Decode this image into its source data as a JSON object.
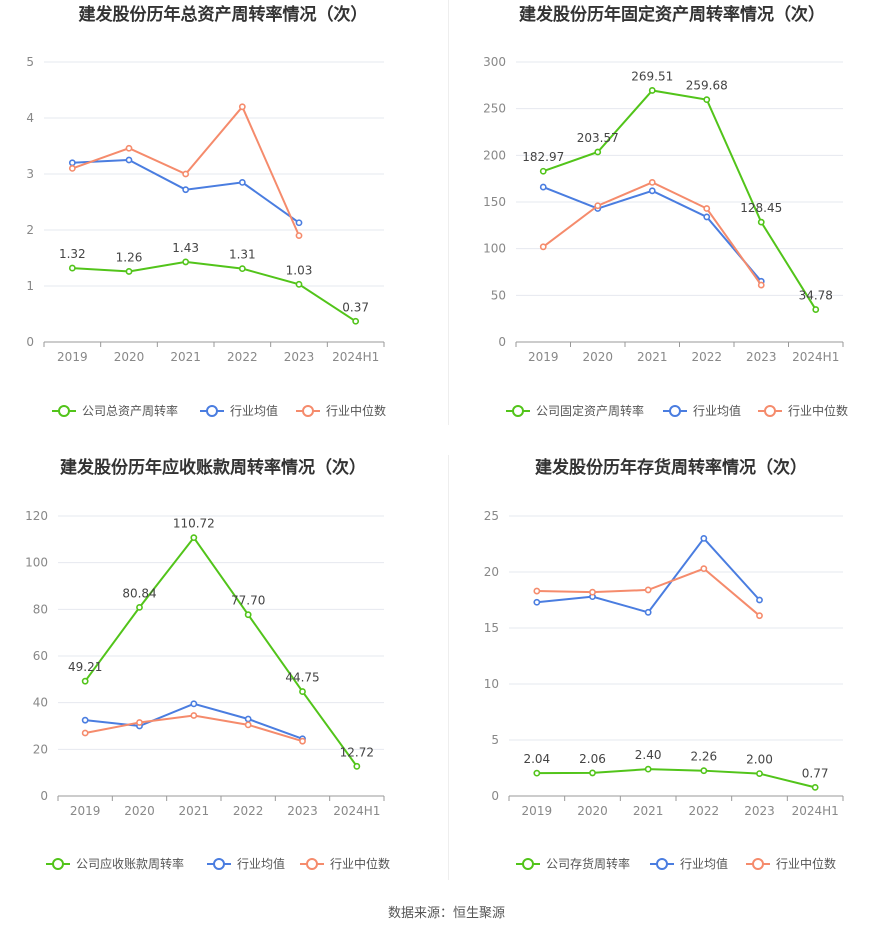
{
  "source_text": "数据来源：恒生聚源",
  "chart_data": [
    {
      "type": "line",
      "title": "建发股份历年总资产周转率情况（次）",
      "categories": [
        "2019",
        "2020",
        "2021",
        "2022",
        "2023",
        "2024H1"
      ],
      "ylim": [
        0,
        5
      ],
      "yticks": [
        "0",
        "1",
        "2",
        "3",
        "4",
        "5"
      ],
      "label_format": 2,
      "grid": true,
      "legend_position": "bottom",
      "series": [
        {
          "name": "公司总资产周转率",
          "color": "#52c41a",
          "values": [
            1.32,
            1.26,
            1.43,
            1.31,
            1.03,
            0.37
          ],
          "labels": true
        },
        {
          "name": "行业均值",
          "color": "#4a7de0",
          "values": [
            3.2,
            3.25,
            2.72,
            2.85,
            2.13,
            null
          ]
        },
        {
          "name": "行业中位数",
          "color": "#f58b6c",
          "values": [
            3.1,
            3.46,
            3.0,
            4.2,
            1.9,
            null
          ]
        }
      ]
    },
    {
      "type": "line",
      "title": "建发股份历年固定资产周转率情况（次）",
      "categories": [
        "2019",
        "2020",
        "2021",
        "2022",
        "2023",
        "2024H1"
      ],
      "ylim": [
        0,
        300
      ],
      "yticks": [
        "0",
        "50",
        "100",
        "150",
        "200",
        "250",
        "300"
      ],
      "label_format": 2,
      "grid": true,
      "legend_position": "bottom",
      "series": [
        {
          "name": "公司固定资产周转率",
          "color": "#52c41a",
          "values": [
            182.97,
            203.57,
            269.51,
            259.68,
            128.45,
            34.78
          ],
          "labels": true
        },
        {
          "name": "行业均值",
          "color": "#4a7de0",
          "values": [
            166,
            143,
            162,
            134,
            65,
            null
          ]
        },
        {
          "name": "行业中位数",
          "color": "#f58b6c",
          "values": [
            102,
            146,
            171,
            143,
            61,
            null
          ]
        }
      ]
    },
    {
      "type": "line",
      "title": "建发股份历年应收账款周转率情况（次）",
      "categories": [
        "2019",
        "2020",
        "2021",
        "2022",
        "2023",
        "2024H1"
      ],
      "ylim": [
        0,
        120
      ],
      "yticks": [
        "0",
        "20",
        "40",
        "60",
        "80",
        "100",
        "120"
      ],
      "label_format": 2,
      "grid": true,
      "legend_position": "bottom",
      "series": [
        {
          "name": "公司应收账款周转率",
          "color": "#52c41a",
          "values": [
            49.21,
            80.84,
            110.72,
            77.7,
            44.75,
            12.72
          ],
          "labels": true
        },
        {
          "name": "行业均值",
          "color": "#4a7de0",
          "values": [
            32.5,
            30.0,
            39.5,
            33.0,
            24.5,
            null
          ]
        },
        {
          "name": "行业中位数",
          "color": "#f58b6c",
          "values": [
            27.0,
            31.5,
            34.5,
            30.5,
            23.5,
            null
          ]
        }
      ]
    },
    {
      "type": "line",
      "title": "建发股份历年存货周转率情况（次）",
      "categories": [
        "2019",
        "2020",
        "2021",
        "2022",
        "2023",
        "2024H1"
      ],
      "ylim": [
        0,
        25
      ],
      "yticks": [
        "0",
        "5",
        "10",
        "15",
        "20",
        "25"
      ],
      "label_format": 2,
      "grid": true,
      "legend_position": "bottom",
      "series": [
        {
          "name": "公司存货周转率",
          "color": "#52c41a",
          "values": [
            2.04,
            2.06,
            2.4,
            2.26,
            2.0,
            0.77
          ],
          "labels": true
        },
        {
          "name": "行业均值",
          "color": "#4a7de0",
          "values": [
            17.3,
            17.8,
            16.4,
            23.0,
            17.5,
            null
          ]
        },
        {
          "name": "行业中位数",
          "color": "#f58b6c",
          "values": [
            18.3,
            18.2,
            18.4,
            20.3,
            16.1,
            null
          ]
        }
      ]
    }
  ]
}
